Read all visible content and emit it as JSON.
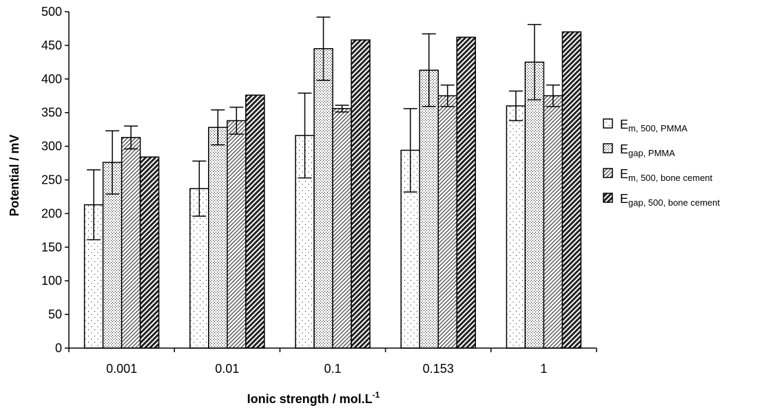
{
  "chart_data": {
    "type": "bar",
    "xlabel": {
      "main": "Ionic strength / mol.L",
      "sup": "-1"
    },
    "ylabel": "Potential / mV",
    "ylim": [
      0,
      500
    ],
    "yticks": [
      0,
      50,
      100,
      150,
      200,
      250,
      300,
      350,
      400,
      450,
      500
    ],
    "categories": [
      "0.001",
      "0.01",
      "0.1",
      "0.153",
      "1"
    ],
    "grid": false,
    "legend_position": "right",
    "series": [
      {
        "name": "E m, 500, PMMA",
        "label_main": "E",
        "label_sub": "m, 500, PMMA",
        "pattern": "sparse-dots",
        "values": [
          213,
          237,
          316,
          294,
          360
        ],
        "errors": [
          52,
          41,
          63,
          62,
          22
        ]
      },
      {
        "name": "E gap, PMMA",
        "label_main": "E",
        "label_sub": "gap, PMMA",
        "pattern": "dense-dots",
        "values": [
          276,
          328,
          445,
          413,
          425
        ],
        "errors": [
          47,
          26,
          47,
          54,
          56
        ]
      },
      {
        "name": "E m, 500, bone cement",
        "label_main": "E",
        "label_sub": "m, 500, bone cement",
        "pattern": "light-diagonal",
        "values": [
          313,
          338,
          356,
          375,
          375
        ],
        "errors": [
          17,
          20,
          5,
          16,
          16
        ]
      },
      {
        "name": "E gap, 500, bone cement",
        "label_main": "E",
        "label_sub": "gap, 500, bone cement",
        "pattern": "dark-diagonal",
        "values": [
          284,
          376,
          458,
          462,
          470
        ],
        "errors": [
          0,
          0,
          0,
          0,
          0
        ]
      }
    ]
  }
}
